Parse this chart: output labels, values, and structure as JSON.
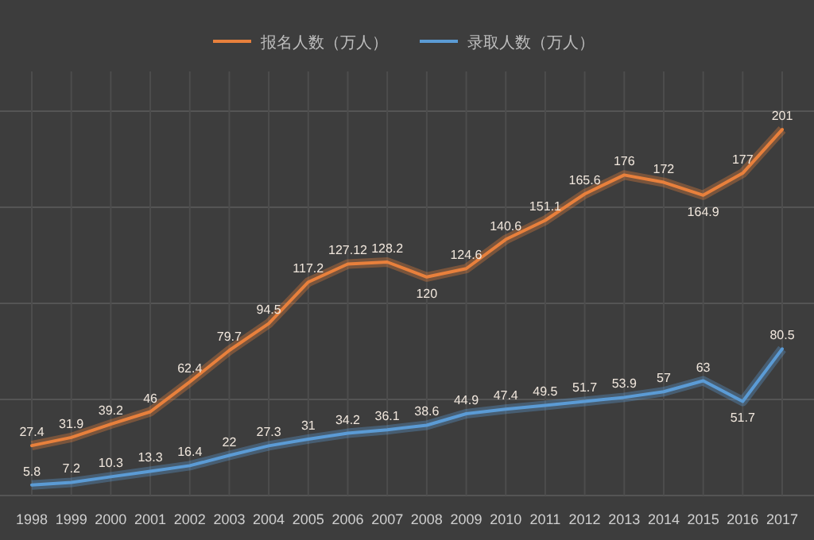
{
  "chart_data": {
    "type": "line",
    "categories": [
      "1998",
      "1999",
      "2000",
      "2001",
      "2002",
      "2003",
      "2004",
      "2005",
      "2006",
      "2007",
      "2008",
      "2009",
      "2010",
      "2011",
      "2012",
      "2013",
      "2014",
      "2015",
      "2016",
      "2017"
    ],
    "series": [
      {
        "name": "报名人数（万人）",
        "color": "#e8803c",
        "values": [
          27.4,
          31.9,
          39.2,
          46,
          62.4,
          79.7,
          94.5,
          117.2,
          127.12,
          128.2,
          120,
          124.6,
          140.6,
          151.1,
          165.6,
          176,
          172,
          164.9,
          177,
          201
        ]
      },
      {
        "name": "录取人数（万人）",
        "color": "#5b9bd5",
        "values": [
          5.8,
          7.2,
          10.3,
          13.3,
          16.4,
          22,
          27.3,
          31,
          34.2,
          36.1,
          38.6,
          44.9,
          47.4,
          49.5,
          51.7,
          53.9,
          57,
          63,
          51.7,
          80.5
        ]
      }
    ],
    "data_labels": true,
    "grid": true,
    "legend": "top",
    "marker": "none",
    "line_style": "solid"
  }
}
